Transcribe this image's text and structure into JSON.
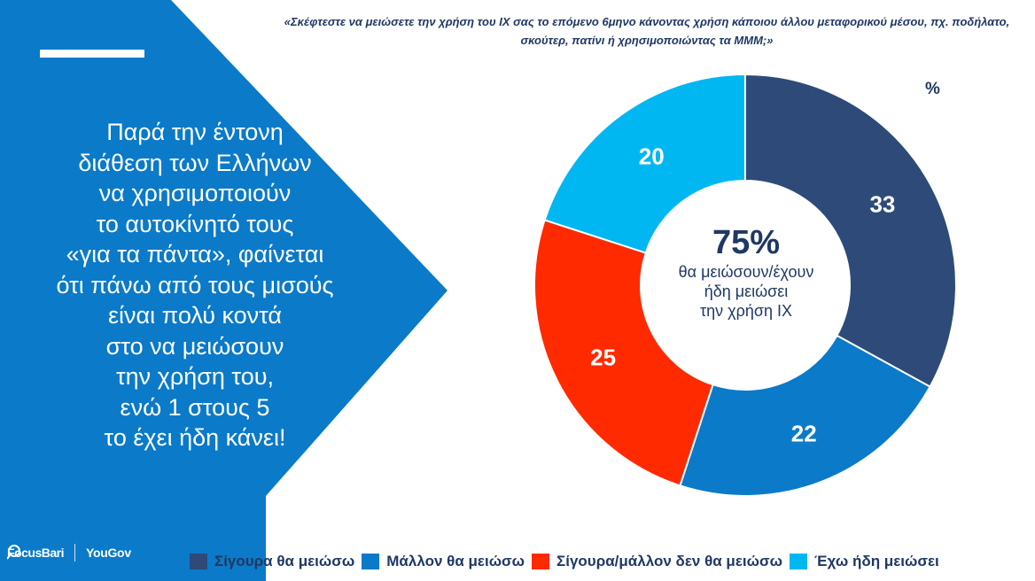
{
  "headline": "Παρά την έντονη\nδιάθεση των Ελλήνων\nνα χρησιμοποιούν\nτο αυτοκίνητό τους\n«για τα πάντα», φαίνεται\nότι πάνω από τους μισούς\nείναι πολύ κοντά\nστο να μειώσουν\nτην χρήση του,\nενώ 1 στους 5\nτο έχει ήδη κάνει!",
  "question": "«Σκέφτεστε να μειώσετε την χρήση του ΙΧ σας το επόμενο 6μηνο κάνοντας χρήση κάποιου άλλου μεταφορικού μέσου, πχ. ποδήλατο, σκούτερ, πατίνι ή χρησιμοποιώντας τα ΜΜΜ;»",
  "unit_label": "%",
  "center": {
    "big": "75%",
    "small": "θα μειώσουν/έχουν\nήδη μειώσει\nτην χρήση ΙΧ"
  },
  "logos": {
    "focus": "FocusBari",
    "yougov": "YouGov"
  },
  "colors": {
    "panel_blue": "#0a7ac9",
    "text_navy": "#1f3864"
  },
  "chart_data": {
    "type": "pie",
    "variant": "donut",
    "unit": "%",
    "categories": [
      "Σίγουρα θα μειώσω",
      "Μάλλον θα μειώσω",
      "Σίγουρα/μάλλον δεν θα μειώσω",
      "Έχω ήδη μειώσει"
    ],
    "values": [
      33,
      22,
      25,
      20
    ],
    "colors": [
      "#2e4a78",
      "#0a7ac9",
      "#ff2a00",
      "#00b7f1"
    ],
    "legend_position": "bottom"
  }
}
